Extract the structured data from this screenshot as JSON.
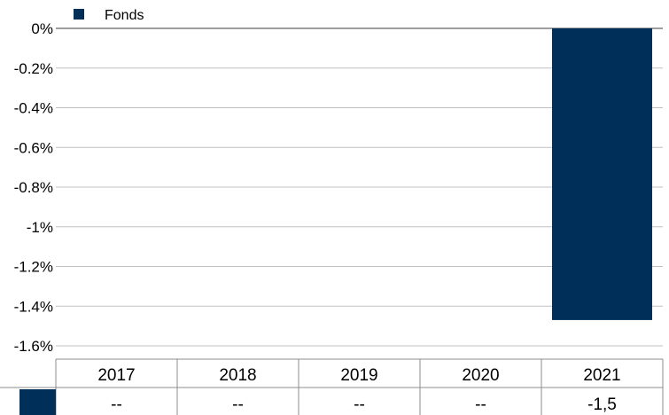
{
  "chart_data": {
    "type": "bar",
    "categories": [
      "2017",
      "2018",
      "2019",
      "2020",
      "2021"
    ],
    "series": [
      {
        "name": "Fonds",
        "values": [
          null,
          null,
          null,
          null,
          -1.47
        ],
        "color": "#00305a"
      }
    ],
    "ylim": [
      -1.6,
      0
    ],
    "yticks": [
      0,
      -0.2,
      -0.4,
      -0.6,
      -0.8,
      -1,
      -1.2,
      -1.4,
      -1.6
    ],
    "ytick_labels": [
      "0%",
      "-0.2%",
      "-0.4%",
      "-0.6%",
      "-0.8%",
      "-1%",
      "-1.2%",
      "-1.4%",
      "-1.6%"
    ],
    "grid": true,
    "legend_position": "top-left",
    "table": {
      "header": [
        "2017",
        "2018",
        "2019",
        "2020",
        "2021"
      ],
      "rows": [
        {
          "series": "Fonds",
          "cells": [
            "--",
            "--",
            "--",
            "--",
            "-1,5"
          ]
        }
      ]
    }
  }
}
